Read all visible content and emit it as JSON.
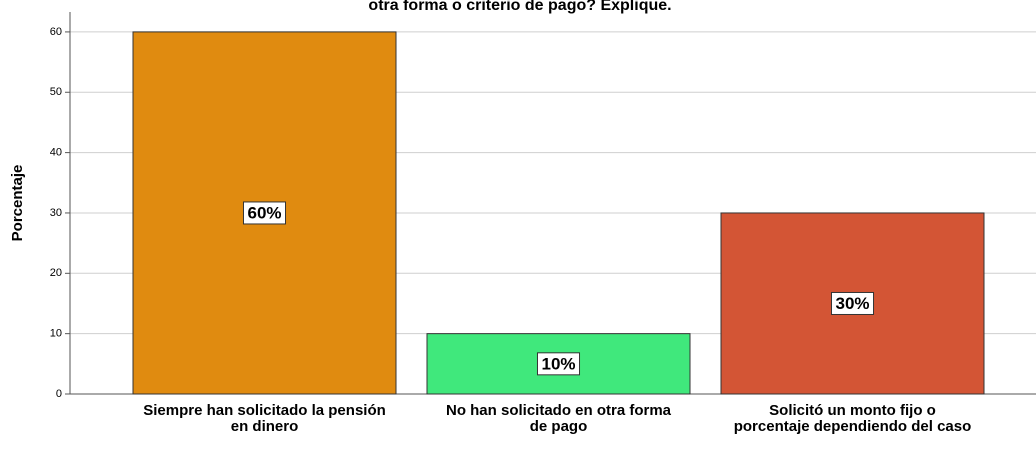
{
  "chart_data": {
    "type": "bar",
    "title": "otra forma o criterio de pago? Explique.",
    "y_label": "Porcentaje",
    "categories": [
      "Siempre han solicitado la pensión en dinero",
      "No han solicitado en otra forma de pago",
      "Solicitó un monto fijo o porcentaje dependiendo del caso"
    ],
    "values": [
      60,
      10,
      30
    ],
    "value_labels": [
      "60%",
      "10%",
      "30%"
    ],
    "colors": [
      "#e08b10",
      "#40e87c",
      "#d35535"
    ],
    "ylim": [
      0,
      63.3
    ],
    "yticks": [
      0,
      10,
      20,
      30,
      40,
      50,
      60
    ],
    "grid": true
  }
}
